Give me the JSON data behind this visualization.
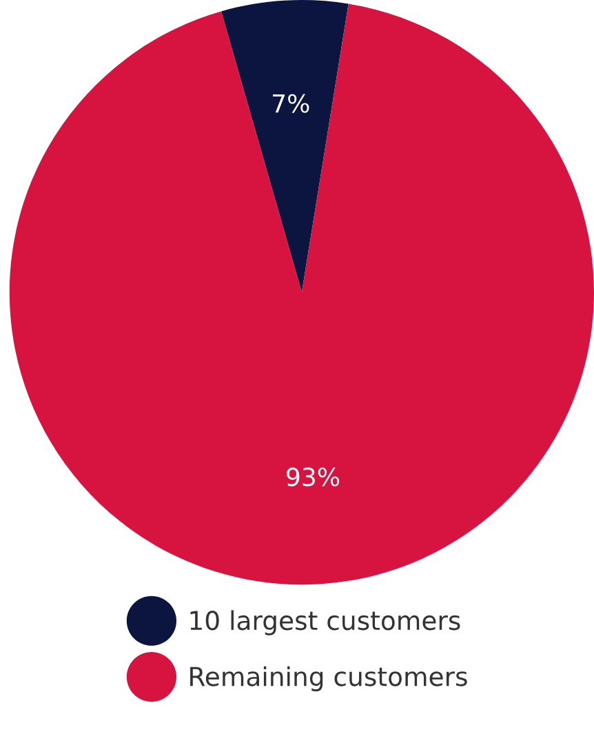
{
  "chart_data": {
    "type": "pie",
    "categories": [
      "10 largest customers",
      "Remaining customers"
    ],
    "values": [
      7,
      93
    ],
    "colors": [
      "#0b1540",
      "#d7143f"
    ],
    "value_labels": [
      "7%",
      "93%"
    ],
    "legend": "bottom"
  }
}
